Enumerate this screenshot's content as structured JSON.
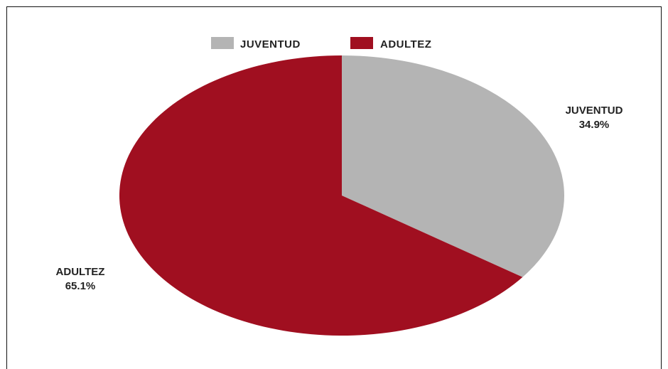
{
  "chart_data": {
    "type": "pie",
    "title": "",
    "categories": [
      "JUVENTUD",
      "ADULTEZ"
    ],
    "values": [
      34.9,
      65.1
    ],
    "labels": [
      "34.9%",
      "65.1%"
    ],
    "colors": [
      "#b4b4b4",
      "#a00f20"
    ],
    "legend": {
      "placement": "top",
      "entries": [
        "JUVENTUD",
        "ADULTEZ"
      ]
    },
    "start_angle": "top, clockwise"
  }
}
